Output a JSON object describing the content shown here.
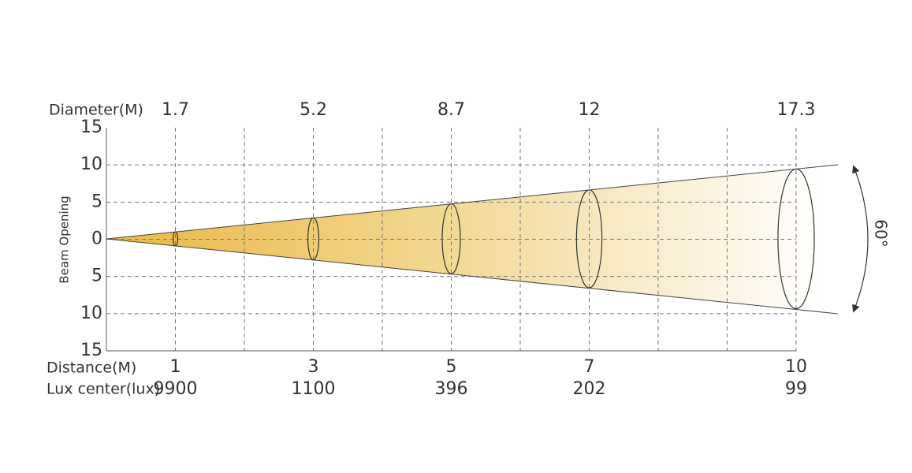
{
  "axis_labels": {
    "diameter": "Diameter(M)",
    "distance": "Distance(M)",
    "lux": "Lux center(lux)",
    "beam": "Beam Opening"
  },
  "beam_angle": "60°",
  "y_ticks": [
    "15",
    "10",
    "5",
    "0",
    "5",
    "10",
    "15"
  ],
  "columns": [
    {
      "distance": "1",
      "diameter": "1.7",
      "lux": "9900"
    },
    {
      "distance": "3",
      "diameter": "5.2",
      "lux": "1100"
    },
    {
      "distance": "5",
      "diameter": "8.7",
      "lux": "396"
    },
    {
      "distance": "7",
      "diameter": "12",
      "lux": "202"
    },
    {
      "distance": "10",
      "diameter": "17.3",
      "lux": "99"
    }
  ]
}
